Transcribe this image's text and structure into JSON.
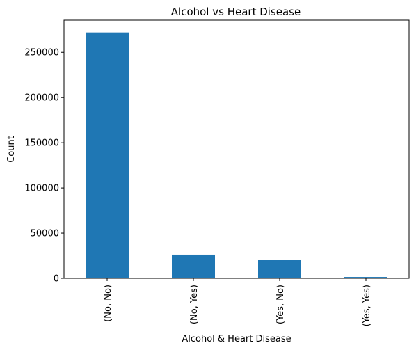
{
  "chart_data": {
    "type": "bar",
    "title": "Alcohol vs Heart Disease",
    "xlabel": "Alcohol & Heart Disease",
    "ylabel": "Count",
    "categories": [
      "(No, No)",
      "(No, Yes)",
      "(Yes, No)",
      "(Yes, Yes)"
    ],
    "values": [
      272000,
      26200,
      20700,
      1500
    ],
    "ylim": [
      0,
      285600
    ],
    "yticks": [
      0,
      50000,
      100000,
      150000,
      200000,
      250000
    ],
    "bar_color": "#1f77b4",
    "grid": false,
    "legend": "none"
  }
}
